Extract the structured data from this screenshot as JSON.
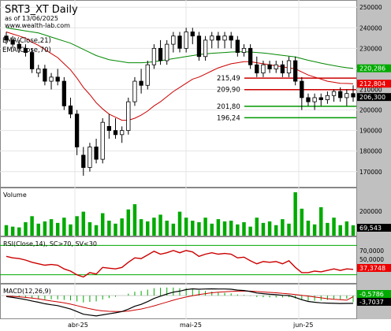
{
  "header": {
    "title": "SRT3_XT Daily",
    "asof": "as of 13/06/2025",
    "url": "www.wealth-lab.com",
    "ema_labels": [
      "EMA(Close,21)",
      "EMA(Close,70)"
    ]
  },
  "colors": {
    "up": "#000000",
    "down": "#000000",
    "ema21": "#cc0000",
    "ema70": "#008800",
    "volume": "#00aa00",
    "rsi": "#cc0000",
    "macd": "#000000",
    "macd_signal": "#cc0000",
    "macd_hist": "#00aa00",
    "axis_bg": "#c0c0c0",
    "label_green": "#00aa00",
    "label_red": "#ee0000",
    "label_black": "#000000"
  },
  "price_axis": {
    "ylim": [
      163000,
      252000
    ],
    "ticks": [
      "250000",
      "240000",
      "230000",
      "220000",
      "210000",
      "200000",
      "190000",
      "180000",
      "170000"
    ],
    "tick_values": [
      250000,
      240000,
      230000,
      220000,
      210000,
      200000,
      190000,
      180000,
      170000
    ]
  },
  "levels": [
    {
      "label": "215,49",
      "value": 215490,
      "color": "#cc0000"
    },
    {
      "label": "209,90",
      "value": 209900,
      "color": "#cc0000"
    },
    {
      "label": "201,80",
      "value": 201800,
      "color": "#009900"
    },
    {
      "label": "196,24",
      "value": 196240,
      "color": "#009900"
    }
  ],
  "last_values": [
    {
      "label": "220,286",
      "value": 220286,
      "bg": "#00aa00",
      "fg": "#ffffff"
    },
    {
      "label": "212,804",
      "value": 212804,
      "bg": "#ee0000",
      "fg": "#ffffff"
    },
    {
      "label": "206,300",
      "value": 206300,
      "bg": "#000000",
      "fg": "#ffffff"
    }
  ],
  "volume_pane": {
    "title": "Volume",
    "tick": "200000",
    "last": "69,543"
  },
  "rsi_pane": {
    "title": "RSI(Close,14), SC>70, SV<30",
    "ticks": [
      "70,0000",
      "50,0000"
    ],
    "last": "37,3748"
  },
  "macd_pane": {
    "title": "MACD(12,26,9)",
    "last_macd": "-3,7037",
    "last_signal": "-0,5786"
  },
  "x_axis": {
    "labels": [
      "abr-25",
      "mai-25",
      "jun-25"
    ]
  },
  "chart_data": {
    "type": "candlestick",
    "title": "SRT3_XT Daily",
    "ylim": [
      163000,
      252000
    ],
    "grid": true,
    "ohlc": [
      [
        236000,
        238000,
        232000,
        234000
      ],
      [
        234000,
        236000,
        230000,
        232000
      ],
      [
        232000,
        234000,
        228000,
        230000
      ],
      [
        230000,
        232000,
        226000,
        228000
      ],
      [
        228000,
        230000,
        218000,
        220000
      ],
      [
        218000,
        222000,
        216000,
        220000
      ],
      [
        220000,
        222000,
        212000,
        214000
      ],
      [
        214000,
        218000,
        210000,
        216000
      ],
      [
        216000,
        220000,
        212000,
        214000
      ],
      [
        214000,
        216000,
        200000,
        202000
      ],
      [
        202000,
        206000,
        196000,
        198000
      ],
      [
        198000,
        200000,
        178000,
        182000
      ],
      [
        178000,
        182000,
        168000,
        172000
      ],
      [
        172000,
        184000,
        170000,
        182000
      ],
      [
        182000,
        186000,
        174000,
        176000
      ],
      [
        176000,
        196000,
        174000,
        194000
      ],
      [
        192000,
        198000,
        186000,
        190000
      ],
      [
        190000,
        196000,
        186000,
        188000
      ],
      [
        188000,
        192000,
        184000,
        190000
      ],
      [
        190000,
        206000,
        188000,
        204000
      ],
      [
        204000,
        216000,
        202000,
        214000
      ],
      [
        214000,
        220000,
        208000,
        212000
      ],
      [
        212000,
        224000,
        210000,
        222000
      ],
      [
        222000,
        232000,
        220000,
        230000
      ],
      [
        230000,
        234000,
        222000,
        224000
      ],
      [
        224000,
        234000,
        222000,
        232000
      ],
      [
        232000,
        238000,
        228000,
        236000
      ],
      [
        236000,
        238000,
        228000,
        230000
      ],
      [
        230000,
        240000,
        228000,
        238000
      ],
      [
        238000,
        240000,
        232000,
        236000
      ],
      [
        236000,
        238000,
        224000,
        226000
      ],
      [
        226000,
        236000,
        224000,
        234000
      ],
      [
        234000,
        238000,
        230000,
        236000
      ],
      [
        236000,
        238000,
        230000,
        234000
      ],
      [
        234000,
        238000,
        230000,
        236000
      ],
      [
        236000,
        238000,
        230000,
        234000
      ],
      [
        234000,
        236000,
        226000,
        228000
      ],
      [
        228000,
        232000,
        226000,
        230000
      ],
      [
        230000,
        232000,
        220000,
        222000
      ],
      [
        222000,
        226000,
        216000,
        218000
      ],
      [
        218000,
        224000,
        216000,
        222000
      ],
      [
        222000,
        224000,
        218000,
        220000
      ],
      [
        220000,
        224000,
        218000,
        222000
      ],
      [
        222000,
        224000,
        216000,
        218000
      ],
      [
        218000,
        226000,
        216000,
        224000
      ],
      [
        224000,
        226000,
        212000,
        214000
      ],
      [
        214000,
        216000,
        200000,
        206000
      ],
      [
        206000,
        208000,
        202000,
        204000
      ],
      [
        204000,
        208000,
        200000,
        206000
      ],
      [
        206000,
        208000,
        202000,
        205000
      ],
      [
        205000,
        209000,
        203000,
        207000
      ],
      [
        207000,
        210000,
        204000,
        209000
      ],
      [
        209000,
        211000,
        204000,
        206000
      ],
      [
        206000,
        210000,
        202000,
        208000
      ],
      [
        208000,
        212000,
        204000,
        206300
      ]
    ],
    "ema21": [
      238000,
      237000,
      236000,
      235000,
      233000,
      231500,
      229500,
      227500,
      225500,
      222500,
      219500,
      215500,
      211000,
      207500,
      203500,
      200500,
      198000,
      196500,
      195000,
      195000,
      196000,
      197500,
      199500,
      202000,
      204000,
      206500,
      209000,
      211000,
      213000,
      215000,
      216000,
      217500,
      219000,
      220500,
      221500,
      222500,
      223000,
      223500,
      223500,
      223000,
      222500,
      222000,
      221500,
      221000,
      220500,
      220000,
      218500,
      217000,
      216000,
      215000,
      214000,
      213500,
      213000,
      212900,
      212804
    ],
    "ema70": [
      240000,
      239500,
      239000,
      238500,
      238000,
      237500,
      236500,
      235500,
      234500,
      233500,
      232500,
      231000,
      229500,
      228000,
      226500,
      225500,
      224500,
      224000,
      223500,
      223000,
      223000,
      223000,
      223200,
      223500,
      224000,
      224500,
      225000,
      225500,
      226000,
      226500,
      227000,
      227300,
      227600,
      227800,
      228000,
      228200,
      228300,
      228300,
      228200,
      228000,
      227700,
      227400,
      227000,
      226600,
      226200,
      225800,
      225000,
      224200,
      223500,
      222800,
      222200,
      221600,
      221000,
      220600,
      220286
    ],
    "volume": [
      70000,
      60000,
      55000,
      90000,
      130000,
      80000,
      95000,
      110000,
      85000,
      120000,
      75000,
      130000,
      160000,
      90000,
      70000,
      150000,
      100000,
      80000,
      115000,
      175000,
      210000,
      110000,
      95000,
      120000,
      140000,
      100000,
      80000,
      160000,
      120000,
      100000,
      90000,
      120000,
      80000,
      110000,
      95000,
      100000,
      75000,
      90000,
      60000,
      120000,
      85000,
      95000,
      70000,
      110000,
      80000,
      290000,
      180000,
      100000,
      75000,
      190000,
      85000,
      120000,
      70000,
      95000,
      69543
    ],
    "rsi": [
      55,
      53,
      52,
      50,
      47,
      45,
      43,
      44,
      43,
      38,
      35,
      30,
      27,
      33,
      31,
      40,
      39,
      38,
      40,
      47,
      53,
      52,
      57,
      62,
      58,
      60,
      63,
      60,
      63,
      61,
      55,
      58,
      60,
      58,
      59,
      58,
      53,
      54,
      49,
      45,
      48,
      47,
      48,
      45,
      49,
      40,
      33,
      33,
      35,
      34,
      36,
      38,
      36,
      38,
      37.37
    ],
    "macd": [
      -500,
      -900,
      -1400,
      -1900,
      -2600,
      -3200,
      -3900,
      -4400,
      -4800,
      -5600,
      -6400,
      -7600,
      -8900,
      -9300,
      -9700,
      -9200,
      -8700,
      -8200,
      -7600,
      -6500,
      -5100,
      -4200,
      -2900,
      -1400,
      -300,
      700,
      1600,
      2100,
      2800,
      3200,
      3000,
      3100,
      3200,
      3100,
      3100,
      3000,
      2600,
      2400,
      1900,
      1200,
      900,
      600,
      400,
      100,
      0,
      -900,
      -2000,
      -2800,
      -3200,
      -3500,
      -3600,
      -3700,
      -3800,
      -3750,
      -3703.7
    ],
    "macd_signal": [
      -300,
      -400,
      -600,
      -900,
      -1200,
      -1600,
      -2100,
      -2600,
      -3000,
      -3500,
      -4100,
      -4800,
      -5600,
      -6300,
      -6900,
      -7300,
      -7500,
      -7600,
      -7600,
      -7400,
      -6900,
      -6400,
      -5700,
      -4900,
      -4000,
      -3100,
      -2200,
      -1400,
      -700,
      -100,
      500,
      900,
      1300,
      1600,
      1800,
      2000,
      2100,
      2100,
      2100,
      1900,
      1700,
      1500,
      1300,
      1000,
      800,
      500,
      100,
      -300,
      -700,
      -1100,
      -1500,
      -1800,
      -2000,
      -2200,
      -578.6
    ]
  }
}
